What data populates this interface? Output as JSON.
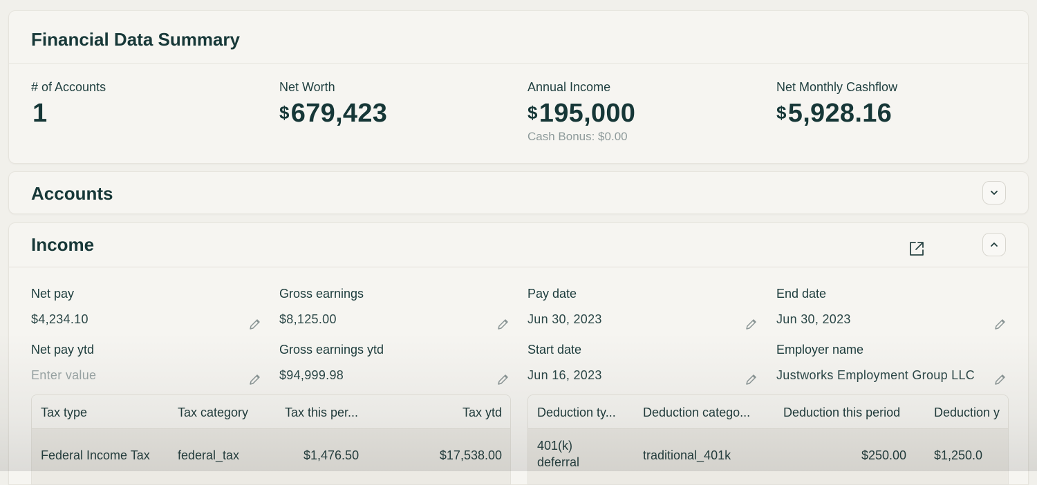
{
  "summary": {
    "title": "Financial Data Summary",
    "stats": [
      {
        "label": "# of Accounts",
        "currency": "",
        "value": "1",
        "sub": ""
      },
      {
        "label": "Net Worth",
        "currency": "$",
        "value": "679,423",
        "sub": ""
      },
      {
        "label": "Annual Income",
        "currency": "$",
        "value": "195,000",
        "sub": "Cash Bonus: $0.00"
      },
      {
        "label": "Net Monthly Cashflow",
        "currency": "$",
        "value": "5,928.16",
        "sub": ""
      }
    ]
  },
  "accounts": {
    "title": "Accounts"
  },
  "income": {
    "title": "Income",
    "fields": [
      {
        "label": "Net pay",
        "value": "$4,234.10",
        "placeholder": ""
      },
      {
        "label": "Gross earnings",
        "value": "$8,125.00",
        "placeholder": ""
      },
      {
        "label": "Pay date",
        "value": "Jun 30, 2023",
        "placeholder": ""
      },
      {
        "label": "End date",
        "value": "Jun 30, 2023",
        "placeholder": ""
      },
      {
        "label": "Net pay ytd",
        "value": "",
        "placeholder": "Enter value"
      },
      {
        "label": "Gross earnings ytd",
        "value": "$94,999.98",
        "placeholder": ""
      },
      {
        "label": "Start date",
        "value": "Jun 16, 2023",
        "placeholder": ""
      },
      {
        "label": "Employer name",
        "value": "Justworks Employment Group LLC",
        "placeholder": ""
      }
    ],
    "tax_table": {
      "headers": [
        "Tax type",
        "Tax category",
        "Tax this per...",
        "Tax ytd"
      ],
      "rows": [
        [
          "Federal Income Tax",
          "federal_tax",
          "$1,476.50",
          "$17,538.00"
        ]
      ]
    },
    "deduction_table": {
      "headers": [
        "Deduction ty...",
        "Deduction catego...",
        "Deduction this period",
        "Deduction y"
      ],
      "rows": [
        [
          "401(k) deferral",
          "traditional_401k",
          "$250.00",
          "$1,250.0"
        ]
      ]
    }
  },
  "colors": {
    "heading": "#173838",
    "muted": "#8d9a9a",
    "card_bg": "#f6f5f1",
    "page_bg": "#f1f0eb"
  },
  "icons": {
    "chevron_down": "chevron-down-icon",
    "chevron_up": "chevron-up-icon",
    "external_link": "external-link-icon",
    "pencil": "pencil-icon"
  }
}
